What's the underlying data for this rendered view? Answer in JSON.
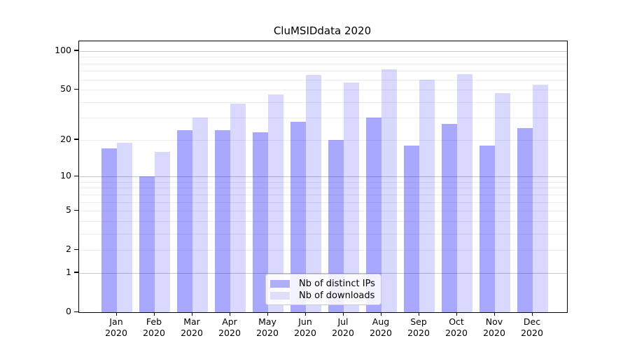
{
  "chart_data": {
    "type": "bar",
    "title": "CluMSIDdata 2020",
    "months": [
      "Jan",
      "Feb",
      "Mar",
      "Apr",
      "May",
      "Jun",
      "Jul",
      "Aug",
      "Sep",
      "Oct",
      "Nov",
      "Dec"
    ],
    "year": "2020",
    "series": [
      {
        "name": "Nb of distinct IPs",
        "values": [
          17,
          10,
          24,
          24,
          23,
          28,
          20,
          30,
          18,
          27,
          18,
          25
        ],
        "bar_color": "rgba(0,0,255,0.34)",
        "legend_color": "#aeaefb"
      },
      {
        "name": "Nb of downloads",
        "values": [
          19,
          16,
          30,
          39,
          46,
          65,
          57,
          72,
          60,
          66,
          47,
          55
        ],
        "bar_color": "rgba(0,0,255,0.15)",
        "legend_color": "#dedefb"
      }
    ],
    "xlabel": "",
    "ylabel": "",
    "y_scale": "log1p",
    "y_max": 119,
    "y_ticks": [
      0,
      1,
      2,
      5,
      10,
      20,
      50,
      100
    ],
    "gridlines_major": [
      1,
      10,
      100
    ],
    "gridlines_minor": [
      2,
      3,
      4,
      5,
      6,
      7,
      8,
      9,
      20,
      30,
      40,
      50,
      60,
      70,
      80,
      90
    ],
    "legend_position": "bottom-center",
    "grid": "on"
  },
  "colors": {
    "background": "#ffffff",
    "axis": "#000000",
    "text": "#000000",
    "grid_major": "#c8c8c8",
    "grid_minor": "#ededed",
    "legend_border": "#c9c9c9",
    "legend_bg": "rgba(255,255,255,0.85)"
  }
}
